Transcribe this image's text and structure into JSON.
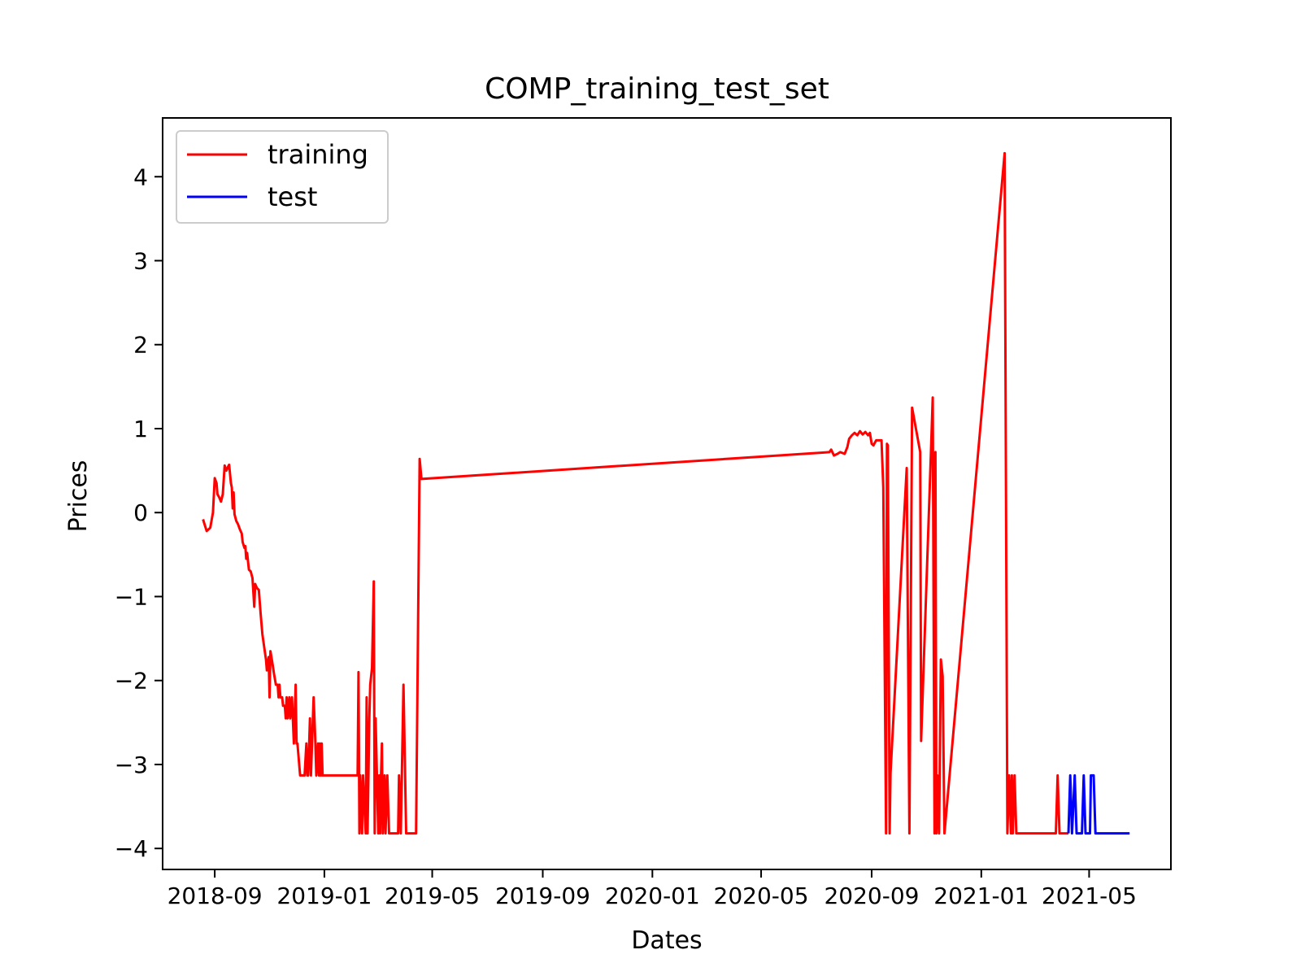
{
  "chart_data": {
    "type": "line",
    "title": "COMP_training_test_set",
    "xlabel": "Dates",
    "ylabel": "Prices",
    "x_range": [
      "2018-07-05",
      "2021-07-31"
    ],
    "ylim": [
      -4.25,
      4.7
    ],
    "x_ticks": [
      "2018-09-01",
      "2019-01-01",
      "2019-05-01",
      "2019-09-01",
      "2020-01-01",
      "2020-05-01",
      "2020-09-01",
      "2021-01-01",
      "2021-05-01"
    ],
    "x_tick_labels": [
      "2018-09",
      "2019-01",
      "2019-05",
      "2019-09",
      "2020-01",
      "2020-05",
      "2020-09",
      "2021-01",
      "2021-05"
    ],
    "y_ticks": [
      4,
      3,
      2,
      1,
      0,
      -1,
      -2,
      -3,
      -4
    ],
    "y_tick_labels": [
      "4",
      "3",
      "2",
      "1",
      "0",
      "−1",
      "−2",
      "−3",
      "−4"
    ],
    "grid": false,
    "legend_position": "upper-left",
    "series": [
      {
        "name": "training",
        "color": "#ff0000",
        "points": [
          [
            "2018-08-19",
            -0.08
          ],
          [
            "2018-08-21",
            -0.15
          ],
          [
            "2018-08-23",
            -0.22
          ],
          [
            "2018-08-25",
            -0.2
          ],
          [
            "2018-08-27",
            -0.18
          ],
          [
            "2018-08-30",
            0.0
          ],
          [
            "2018-09-01",
            0.41
          ],
          [
            "2018-09-03",
            0.35
          ],
          [
            "2018-09-04",
            0.22
          ],
          [
            "2018-09-06",
            0.18
          ],
          [
            "2018-09-08",
            0.13
          ],
          [
            "2018-09-10",
            0.22
          ],
          [
            "2018-09-12",
            0.56
          ],
          [
            "2018-09-14",
            0.5
          ],
          [
            "2018-09-16",
            0.55
          ],
          [
            "2018-09-17",
            0.57
          ],
          [
            "2018-09-19",
            0.35
          ],
          [
            "2018-09-20",
            0.3
          ],
          [
            "2018-09-21",
            0.05
          ],
          [
            "2018-09-22",
            0.24
          ],
          [
            "2018-09-23",
            -0.02
          ],
          [
            "2018-09-25",
            -0.1
          ],
          [
            "2018-09-27",
            -0.14
          ],
          [
            "2018-09-29",
            -0.2
          ],
          [
            "2018-10-01",
            -0.25
          ],
          [
            "2018-10-02",
            -0.35
          ],
          [
            "2018-10-04",
            -0.42
          ],
          [
            "2018-10-05",
            -0.4
          ],
          [
            "2018-10-06",
            -0.55
          ],
          [
            "2018-10-07",
            -0.48
          ],
          [
            "2018-10-09",
            -0.68
          ],
          [
            "2018-10-11",
            -0.7
          ],
          [
            "2018-10-13",
            -0.78
          ],
          [
            "2018-10-14",
            -0.95
          ],
          [
            "2018-10-15",
            -1.12
          ],
          [
            "2018-10-16",
            -0.85
          ],
          [
            "2018-10-18",
            -0.9
          ],
          [
            "2018-10-20",
            -0.92
          ],
          [
            "2018-10-22",
            -1.2
          ],
          [
            "2018-10-24",
            -1.45
          ],
          [
            "2018-10-26",
            -1.6
          ],
          [
            "2018-10-28",
            -1.75
          ],
          [
            "2018-10-29",
            -1.88
          ],
          [
            "2018-10-31",
            -1.72
          ],
          [
            "2018-11-01",
            -2.2
          ],
          [
            "2018-11-02",
            -1.65
          ],
          [
            "2018-11-04",
            -1.78
          ],
          [
            "2018-11-06",
            -1.92
          ],
          [
            "2018-11-08",
            -2.05
          ],
          [
            "2018-11-10",
            -2.05
          ],
          [
            "2018-11-11",
            -2.2
          ],
          [
            "2018-11-12",
            -2.05
          ],
          [
            "2018-11-13",
            -2.2
          ],
          [
            "2018-11-15",
            -2.2
          ],
          [
            "2018-11-16",
            -2.3
          ],
          [
            "2018-11-18",
            -2.3
          ],
          [
            "2018-11-19",
            -2.45
          ],
          [
            "2018-11-20",
            -2.2
          ],
          [
            "2018-11-21",
            -2.45
          ],
          [
            "2018-11-22",
            -2.3
          ],
          [
            "2018-11-23",
            -2.2
          ],
          [
            "2018-11-24",
            -2.45
          ],
          [
            "2018-11-26",
            -2.2
          ],
          [
            "2018-11-28",
            -2.75
          ],
          [
            "2018-11-30",
            -2.05
          ],
          [
            "2018-12-01",
            -2.75
          ],
          [
            "2018-12-02",
            -2.75
          ],
          [
            "2018-12-05",
            -3.13
          ],
          [
            "2018-12-10",
            -3.13
          ],
          [
            "2018-12-12",
            -2.75
          ],
          [
            "2018-12-13",
            -3.13
          ],
          [
            "2018-12-14",
            -3.13
          ],
          [
            "2018-12-16",
            -2.45
          ],
          [
            "2018-12-17",
            -3.13
          ],
          [
            "2018-12-20",
            -2.2
          ],
          [
            "2018-12-22",
            -2.75
          ],
          [
            "2018-12-23",
            -3.13
          ],
          [
            "2018-12-25",
            -2.75
          ],
          [
            "2018-12-26",
            -3.13
          ],
          [
            "2018-12-27",
            -2.75
          ],
          [
            "2018-12-28",
            -3.13
          ],
          [
            "2018-12-29",
            -2.75
          ],
          [
            "2018-12-30",
            -3.13
          ],
          [
            "2019-01-05",
            -3.13
          ],
          [
            "2019-02-05",
            -3.13
          ],
          [
            "2019-02-07",
            -3.13
          ],
          [
            "2019-02-08",
            -1.9
          ],
          [
            "2019-02-09",
            -3.82
          ],
          [
            "2019-02-10",
            -3.13
          ],
          [
            "2019-02-12",
            -3.82
          ],
          [
            "2019-02-13",
            -3.13
          ],
          [
            "2019-02-16",
            -3.82
          ],
          [
            "2019-02-17",
            -2.2
          ],
          [
            "2019-02-18",
            -3.82
          ],
          [
            "2019-02-20",
            -2.45
          ],
          [
            "2019-02-21",
            -2.05
          ],
          [
            "2019-02-23",
            -1.85
          ],
          [
            "2019-02-25",
            -0.82
          ],
          [
            "2019-02-26",
            -3.82
          ],
          [
            "2019-02-27",
            -2.45
          ],
          [
            "2019-03-02",
            -3.82
          ],
          [
            "2019-03-03",
            -3.13
          ],
          [
            "2019-03-04",
            -3.82
          ],
          [
            "2019-03-05",
            -3.13
          ],
          [
            "2019-03-06",
            -2.75
          ],
          [
            "2019-03-07",
            -3.82
          ],
          [
            "2019-03-09",
            -3.13
          ],
          [
            "2019-03-10",
            -3.82
          ],
          [
            "2019-03-12",
            -3.13
          ],
          [
            "2019-03-14",
            -3.82
          ],
          [
            "2019-03-24",
            -3.82
          ],
          [
            "2019-03-25",
            -3.13
          ],
          [
            "2019-03-27",
            -3.82
          ],
          [
            "2019-03-30",
            -2.05
          ],
          [
            "2019-04-02",
            -3.82
          ],
          [
            "2019-04-13",
            -3.82
          ],
          [
            "2019-04-17",
            0.64
          ],
          [
            "2019-04-19",
            0.4
          ],
          [
            "2020-07-16",
            0.72
          ],
          [
            "2020-07-18",
            0.75
          ],
          [
            "2020-07-21",
            0.68
          ],
          [
            "2020-07-25",
            0.7
          ],
          [
            "2020-07-28",
            0.72
          ],
          [
            "2020-08-02",
            0.7
          ],
          [
            "2020-08-05",
            0.78
          ],
          [
            "2020-08-07",
            0.88
          ],
          [
            "2020-08-10",
            0.92
          ],
          [
            "2020-08-13",
            0.95
          ],
          [
            "2020-08-16",
            0.92
          ],
          [
            "2020-08-19",
            0.97
          ],
          [
            "2020-08-22",
            0.93
          ],
          [
            "2020-08-25",
            0.96
          ],
          [
            "2020-08-28",
            0.92
          ],
          [
            "2020-08-30",
            0.95
          ],
          [
            "2020-09-01",
            0.82
          ],
          [
            "2020-09-03",
            0.8
          ],
          [
            "2020-09-06",
            0.86
          ],
          [
            "2020-09-12",
            0.86
          ],
          [
            "2020-09-14",
            0.3
          ],
          [
            "2020-09-17",
            -3.82
          ],
          [
            "2020-09-18",
            0.82
          ],
          [
            "2020-09-19",
            0.8
          ],
          [
            "2020-09-21",
            -3.82
          ],
          [
            "2020-09-22",
            -3.1
          ],
          [
            "2020-10-10",
            0.53
          ],
          [
            "2020-10-13",
            -3.82
          ],
          [
            "2020-10-16",
            1.25
          ],
          [
            "2020-10-25",
            0.72
          ],
          [
            "2020-10-26",
            -2.72
          ],
          [
            "2020-11-06",
            0.72
          ],
          [
            "2020-11-08",
            1.37
          ],
          [
            "2020-11-10",
            -3.82
          ],
          [
            "2020-11-11",
            0.72
          ],
          [
            "2020-11-12",
            -3.82
          ],
          [
            "2020-11-13",
            -3.13
          ],
          [
            "2020-11-15",
            -3.82
          ],
          [
            "2020-11-17",
            -1.75
          ],
          [
            "2020-11-19",
            -1.95
          ],
          [
            "2020-11-21",
            -3.82
          ],
          [
            "2021-01-27",
            4.28
          ],
          [
            "2021-01-30",
            -3.82
          ],
          [
            "2021-02-01",
            -3.13
          ],
          [
            "2021-02-03",
            -3.82
          ],
          [
            "2021-02-04",
            -3.13
          ],
          [
            "2021-02-05",
            -3.82
          ],
          [
            "2021-02-07",
            -3.13
          ],
          [
            "2021-02-09",
            -3.82
          ],
          [
            "2021-03-25",
            -3.82
          ],
          [
            "2021-03-27",
            -3.13
          ],
          [
            "2021-03-29",
            -3.82
          ],
          [
            "2021-04-08",
            -3.82
          ]
        ]
      },
      {
        "name": "test",
        "color": "#0000ff",
        "points": [
          [
            "2021-04-08",
            -3.82
          ],
          [
            "2021-04-10",
            -3.13
          ],
          [
            "2021-04-12",
            -3.82
          ],
          [
            "2021-04-15",
            -3.13
          ],
          [
            "2021-04-17",
            -3.82
          ],
          [
            "2021-04-23",
            -3.82
          ],
          [
            "2021-04-25",
            -3.13
          ],
          [
            "2021-04-27",
            -3.82
          ],
          [
            "2021-05-02",
            -3.82
          ],
          [
            "2021-05-03",
            -3.13
          ],
          [
            "2021-05-06",
            -3.13
          ],
          [
            "2021-05-08",
            -3.82
          ],
          [
            "2021-06-15",
            -3.82
          ]
        ]
      }
    ]
  }
}
